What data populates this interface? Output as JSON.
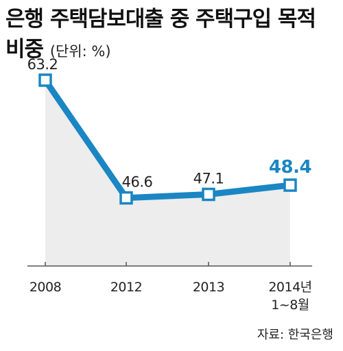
{
  "title_line1": "은행 주택담보대출 중 주택구입 목적",
  "title_line2": "비중",
  "unit": "(단위: %)",
  "source": "자료: 한국은행",
  "colors": {
    "line": "#1a86c4",
    "area": "#ededed",
    "highlight": "#1a86c4",
    "text": "#222222"
  },
  "chart_data": {
    "type": "line",
    "title": "은행 주택담보대출 중 주택구입 목적 비중",
    "ylabel": "%",
    "categories": [
      "2008",
      "2012",
      "2013",
      "2014년\n1~8월"
    ],
    "category_lines": [
      [
        "2008"
      ],
      [
        "2012"
      ],
      [
        "2013"
      ],
      [
        "2014년",
        "1~8월"
      ]
    ],
    "series": [
      {
        "values": [
          63.2,
          46.6,
          47.1,
          48.4
        ]
      }
    ],
    "data_labels": [
      "63.2",
      "46.6",
      "47.1",
      "48.4"
    ],
    "highlight_index": 3,
    "ylim": [
      37,
      66
    ],
    "grid": false,
    "legend": "none"
  }
}
